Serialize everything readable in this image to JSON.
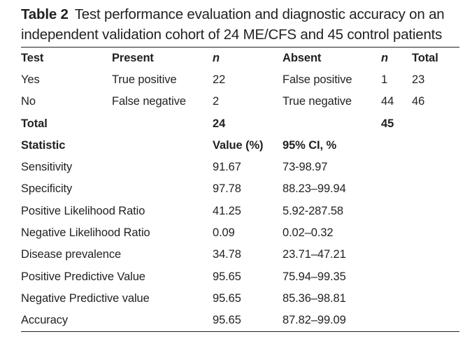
{
  "table": {
    "label": "Table 2",
    "caption": "Test performance evaluation and diagnostic accuracy on an independent validation cohort of 24 ME/CFS and 45 control patients",
    "confusion": {
      "headers": [
        "Test",
        "Present",
        "n",
        "Absent",
        "n",
        "Total"
      ],
      "rows": [
        [
          "Yes",
          "True positive",
          "22",
          "False positive",
          "1",
          "23"
        ],
        [
          "No",
          "False negative",
          "2",
          "True negative",
          "44",
          "46"
        ]
      ],
      "total_row": {
        "label": "Total",
        "present_n": "24",
        "absent_n": "45"
      }
    },
    "statistics": {
      "headers": [
        "Statistic",
        "Value (%)",
        "95% CI, %"
      ],
      "rows": [
        [
          "Sensitivity",
          "91.67",
          "73-98.97"
        ],
        [
          "Specificity",
          "97.78",
          "88.23–99.94"
        ],
        [
          "Positive Likelihood Ratio",
          "41.25",
          "5.92-287.58"
        ],
        [
          "Negative Likelihood Ratio",
          "0.09",
          "0.02–0.32"
        ],
        [
          "Disease prevalence",
          "34.78",
          "23.71–47.21"
        ],
        [
          "Positive Predictive Value",
          "95.65",
          "75.94–99.35"
        ],
        [
          "Negative Predictive value",
          "95.65",
          "85.36–98.81"
        ],
        [
          "Accuracy",
          "95.65",
          "87.82–99.09"
        ]
      ]
    }
  },
  "colors": {
    "text": "#231f20",
    "rule": "#231f20",
    "background": "#ffffff"
  }
}
